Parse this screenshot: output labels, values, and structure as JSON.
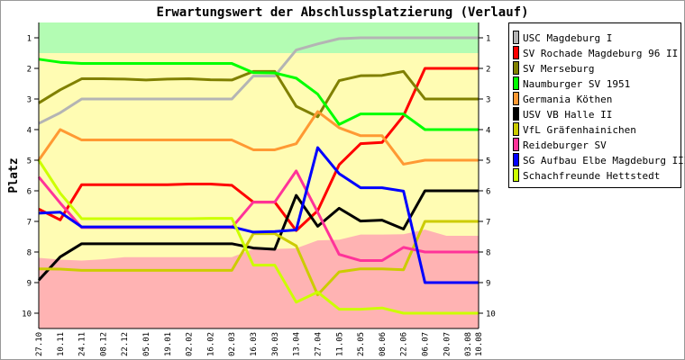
{
  "chart_data": {
    "type": "line",
    "title": "Erwartungswert der Abschlussplatzierung (Verlauf)",
    "ylabel": "Platz",
    "xlabel": "",
    "ylim": [
      0.5,
      10.5
    ],
    "y_inverted": true,
    "yticks": [
      1,
      2,
      3,
      4,
      5,
      6,
      7,
      8,
      9,
      10
    ],
    "categories": [
      "27.10",
      "10.11",
      "24.11",
      "08.12",
      "22.12",
      "05.01",
      "19.01",
      "02.02",
      "16.02",
      "02.03",
      "16.03",
      "30.03",
      "13.04",
      "27.04",
      "11.05",
      "25.05",
      "08.06",
      "22.06",
      "06.07",
      "20.07",
      "03.08",
      "10.08"
    ],
    "x_days": [
      0,
      14,
      28,
      42,
      56,
      70,
      84,
      98,
      112,
      126,
      140,
      154,
      168,
      182,
      196,
      210,
      224,
      238,
      252,
      266,
      280,
      287
    ],
    "zones": {
      "promotion_zone": {
        "from": 0.5,
        "to": 1.5,
        "color": "#b3fcb3"
      },
      "middle_color": "#fffcb3",
      "relegation_zone_upper": [
        8.19,
        8.25,
        8.28,
        8.24,
        8.17,
        8.17,
        8.17,
        8.17,
        8.17,
        8.17,
        7.9,
        7.9,
        7.88,
        7.62,
        7.6,
        7.43,
        7.43,
        7.42,
        7.27,
        7.47,
        7.47,
        7.47
      ],
      "relegation_color": "#ffb3b3"
    },
    "series": [
      {
        "name": "USC Magdeburg I",
        "color": "#b4b4b4",
        "values": [
          3.8,
          3.45,
          3.0,
          3.0,
          3.0,
          3.0,
          3.0,
          3.0,
          3.0,
          3.0,
          2.25,
          2.25,
          1.4,
          1.2,
          1.03,
          1,
          1,
          1,
          1,
          1,
          1,
          1
        ]
      },
      {
        "name": "SV Rochade Magdeburg 96 II",
        "color": "#ff0000",
        "values": [
          6.6,
          6.95,
          5.8,
          5.8,
          5.8,
          5.8,
          5.8,
          5.78,
          5.78,
          5.82,
          6.37,
          6.37,
          7.3,
          6.65,
          5.15,
          4.46,
          4.42,
          3.55,
          2,
          2,
          2,
          2
        ]
      },
      {
        "name": "SV Merseburg",
        "color": "#808000",
        "values": [
          3.13,
          2.7,
          2.34,
          2.34,
          2.35,
          2.38,
          2.35,
          2.34,
          2.37,
          2.38,
          2.1,
          2.1,
          3.24,
          3.58,
          2.4,
          2.24,
          2.23,
          2.1,
          3,
          3,
          3,
          3
        ]
      },
      {
        "name": "Naumburger SV 1951",
        "color": "#00ff00",
        "values": [
          1.7,
          1.8,
          1.84,
          1.84,
          1.84,
          1.84,
          1.84,
          1.84,
          1.84,
          1.84,
          2.14,
          2.15,
          2.32,
          2.84,
          3.83,
          3.49,
          3.49,
          3.49,
          4,
          4,
          4,
          4
        ]
      },
      {
        "name": "Germania Köthen",
        "color": "#ff9933",
        "values": [
          5,
          4,
          4.34,
          4.34,
          4.34,
          4.34,
          4.34,
          4.34,
          4.34,
          4.34,
          4.66,
          4.66,
          4.46,
          3.41,
          3.94,
          4.2,
          4.2,
          5.13,
          5,
          5,
          5,
          5
        ]
      },
      {
        "name": "USV VB Halle II",
        "color": "#000000",
        "values": [
          8.92,
          8.16,
          7.73,
          7.73,
          7.73,
          7.73,
          7.73,
          7.73,
          7.73,
          7.73,
          7.87,
          7.91,
          6.15,
          7.16,
          6.57,
          6.99,
          6.96,
          7.25,
          6,
          6,
          6,
          6
        ]
      },
      {
        "name": "VfL Gräfenhainichen",
        "color": "#cccc00",
        "values": [
          8.55,
          8.56,
          8.6,
          8.6,
          8.6,
          8.6,
          8.6,
          8.6,
          8.6,
          8.6,
          7.4,
          7.4,
          7.8,
          9.4,
          8.65,
          8.55,
          8.55,
          8.58,
          7,
          7,
          7,
          7
        ]
      },
      {
        "name": "Reideburger SV",
        "color": "#ff3399",
        "values": [
          5.55,
          6.4,
          7.2,
          7.2,
          7.2,
          7.2,
          7.2,
          7.2,
          7.2,
          7.2,
          6.37,
          6.37,
          5.35,
          6.7,
          8.08,
          8.28,
          8.28,
          7.85,
          8,
          8,
          8,
          8
        ]
      },
      {
        "name": "SG Aufbau Elbe Magdeburg III",
        "color": "#0000ff",
        "values": [
          6.73,
          6.7,
          7.18,
          7.18,
          7.18,
          7.18,
          7.18,
          7.18,
          7.18,
          7.18,
          7.35,
          7.33,
          7.28,
          4.59,
          5.44,
          5.9,
          5.9,
          6.01,
          9,
          9,
          9,
          9
        ]
      },
      {
        "name": "Schachfreunde Hettstedt",
        "color": "#ccff00",
        "values": [
          5,
          6.08,
          6.91,
          6.91,
          6.91,
          6.91,
          6.91,
          6.91,
          6.9,
          6.9,
          8.43,
          8.43,
          9.64,
          9.31,
          9.87,
          9.87,
          9.83,
          10,
          10,
          10,
          10,
          10
        ]
      }
    ],
    "legend": "right",
    "grid": false
  }
}
